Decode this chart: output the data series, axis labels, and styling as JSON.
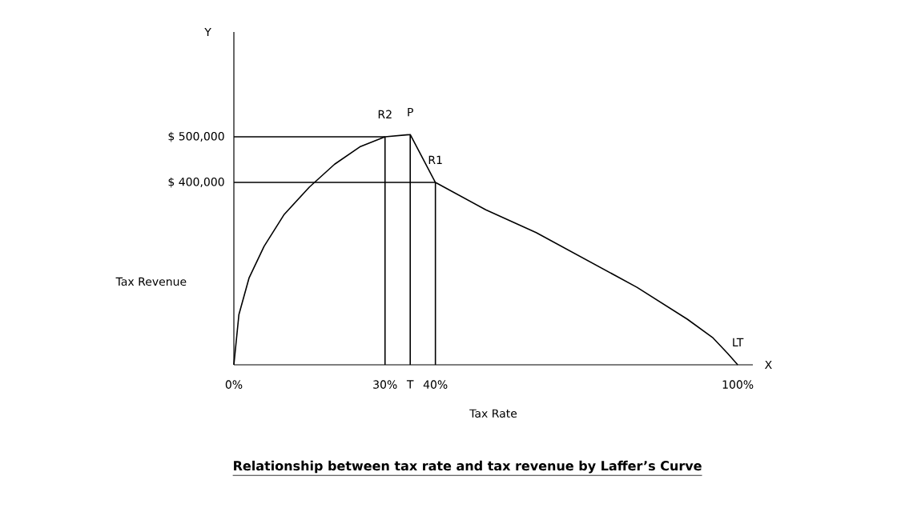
{
  "chart_data": {
    "type": "line",
    "title": "Relationship between tax rate and tax revenue by Laffer’s Curve",
    "xlabel": "Tax Rate",
    "ylabel": "Tax Revenue",
    "xlim": [
      0,
      103
    ],
    "ylim": [
      0,
      730000
    ],
    "xticks": [
      {
        "value": 0,
        "label": "0%"
      },
      {
        "value": 30,
        "label": "30%"
      },
      {
        "value": 35,
        "label": "T"
      },
      {
        "value": 40,
        "label": "40%"
      },
      {
        "value": 100,
        "label": "100%"
      }
    ],
    "yticks": [
      {
        "value": 400000,
        "label": "$ 400,000"
      },
      {
        "value": 500000,
        "label": "$ 500,000"
      }
    ],
    "marker": "none",
    "line_style": "solid",
    "series": [
      {
        "color": "#000000",
        "x": [
          0,
          1,
          3,
          6,
          10,
          15,
          20,
          25,
          30,
          35,
          40,
          50,
          60,
          70,
          80,
          90,
          95,
          98,
          100
        ],
        "values": [
          0,
          110000,
          190000,
          260000,
          330000,
          390000,
          440000,
          478000,
          500000,
          505000,
          400000,
          340000,
          290000,
          230000,
          170000,
          100000,
          60000,
          25000,
          0
        ]
      },
      {
        "color": "#000000",
        "x": [
          0,
          30
        ],
        "values": [
          500000,
          500000
        ]
      },
      {
        "color": "#000000",
        "x": [
          0,
          40
        ],
        "values": [
          400000,
          400000
        ]
      },
      {
        "color": "#000000",
        "x": [
          30,
          30
        ],
        "values": [
          0,
          500000
        ]
      },
      {
        "color": "#000000",
        "x": [
          35,
          35
        ],
        "values": [
          0,
          505000
        ]
      },
      {
        "color": "#000000",
        "x": [
          40,
          40
        ],
        "values": [
          0,
          400000
        ]
      }
    ],
    "annotations": [
      {
        "text": "R2",
        "x": 30,
        "y": 500000
      },
      {
        "text": "P",
        "x": 35,
        "y": 505000
      },
      {
        "text": "R1",
        "x": 40,
        "y": 400000
      },
      {
        "text": "LT",
        "x": 100,
        "y": 0
      },
      "Y",
      "X"
    ]
  }
}
